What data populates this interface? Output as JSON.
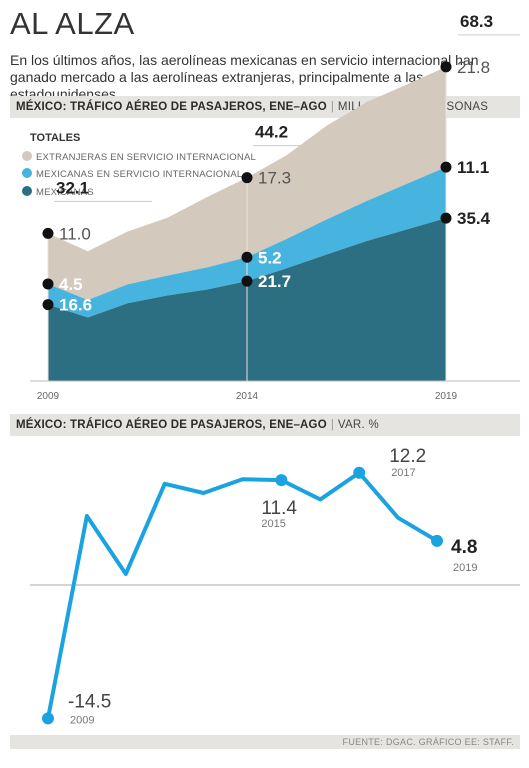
{
  "header": {
    "title": "AL ALZA",
    "subtitle": "En los últimos años, las aerolíneas mexicanas en servicio internacional han ganado mercado a las aerolíneas extranjeras, principalmente a las estadounidenses."
  },
  "chart_data": [
    {
      "type": "area",
      "title": "MÉXICO: TRÁFICO AÉREO DE PASAJEROS, ENE–AGO",
      "unit": "MILLONES DE PERSONAS",
      "legend_title": "TOTALES",
      "legend_position": "top-left",
      "x": [
        2009,
        2010,
        2011,
        2012,
        2013,
        2014,
        2015,
        2016,
        2017,
        2018,
        2019
      ],
      "x_tick_labels": [
        "2009",
        "2014",
        "2019"
      ],
      "series": [
        {
          "name": "MEXICANAS",
          "values": [
            16.6,
            13.8,
            16.9,
            18.6,
            19.9,
            21.7,
            24.5,
            27.5,
            30.4,
            32.9,
            35.4
          ],
          "color": "#2c6f82"
        },
        {
          "name": "MEXICANAS EN SERVICIO INTERNACIONAL",
          "values": [
            4.5,
            3.8,
            4.1,
            4.3,
            4.8,
            5.2,
            6.4,
            7.6,
            8.7,
            9.9,
            11.1
          ],
          "color": "#47b3df"
        },
        {
          "name": "EXTRANJERAS EN SERVICIO INTERNACIONAL",
          "values": [
            11.0,
            10.6,
            11.5,
            12.6,
            15.3,
            17.3,
            18.2,
            20.4,
            21.5,
            21.6,
            21.8
          ],
          "color": "#d3c9bd"
        }
      ],
      "labels": [
        {
          "year": "2009",
          "total": "32.1",
          "extranjeras": "11.0",
          "intl": "4.5",
          "mexicanas": "16.6"
        },
        {
          "year": "2014",
          "total": "44.2",
          "extranjeras": "17.3",
          "intl": "5.2",
          "mexicanas": "21.7"
        },
        {
          "year": "2019",
          "total": "68.3",
          "extranjeras": "21.8",
          "intl": "11.1",
          "mexicanas": "35.4"
        }
      ]
    },
    {
      "type": "line",
      "title": "MÉXICO: TRÁFICO AÉREO DE PASAJEROS, ENE–AGO",
      "unit": "VAR. %",
      "x": [
        2009,
        2010,
        2011,
        2012,
        2013,
        2014,
        2015,
        2016,
        2017,
        2018,
        2019
      ],
      "values": [
        -14.5,
        7.5,
        1.2,
        11.0,
        10.0,
        11.5,
        11.4,
        9.3,
        12.2,
        7.3,
        4.8
      ],
      "color": "#1aa3e0",
      "annotations": [
        {
          "year": "2009",
          "value": "-14.5"
        },
        {
          "year": "2015",
          "value": "11.4"
        },
        {
          "year": "2017",
          "value": "12.2"
        },
        {
          "year": "2019",
          "value": "4.8"
        }
      ]
    }
  ],
  "footer": {
    "source": "FUENTE: DGAC. GRÁFICO EE: STAFF."
  }
}
